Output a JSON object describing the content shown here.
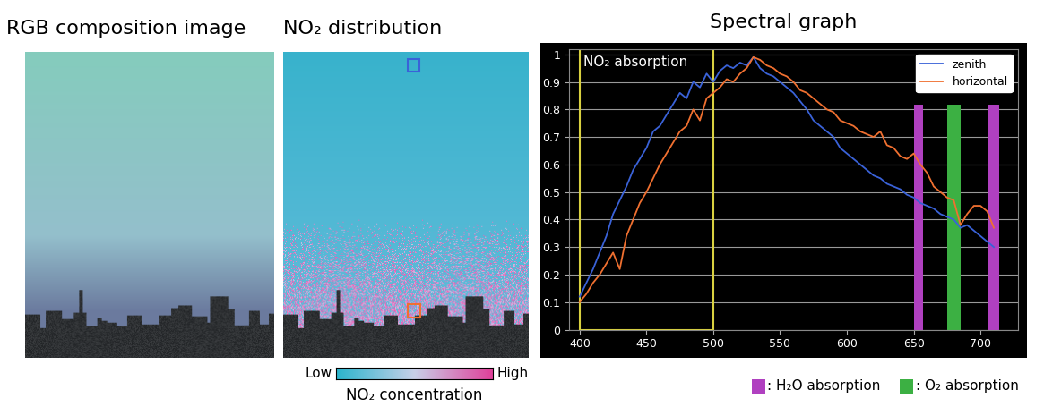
{
  "panels": [
    {
      "title": "RGB composition image"
    },
    {
      "title": "NO₂ distribution",
      "colorbar": {
        "low": "Low",
        "high": "High",
        "label": "NO₂ concentration"
      }
    }
  ],
  "chart_data": {
    "type": "line",
    "title": "Spectral graph",
    "x": [
      400,
      405,
      410,
      415,
      420,
      425,
      430,
      435,
      440,
      445,
      450,
      455,
      460,
      465,
      470,
      475,
      480,
      485,
      490,
      495,
      500,
      505,
      510,
      515,
      520,
      525,
      530,
      535,
      540,
      545,
      550,
      555,
      560,
      565,
      570,
      575,
      580,
      585,
      590,
      595,
      600,
      605,
      610,
      615,
      620,
      625,
      630,
      635,
      640,
      645,
      650,
      655,
      660,
      665,
      670,
      675,
      680,
      685,
      690,
      695,
      700,
      705,
      710
    ],
    "series": [
      {
        "name": "zenith",
        "color": "#3a62d8",
        "values": [
          0.12,
          0.17,
          0.22,
          0.28,
          0.34,
          0.42,
          0.47,
          0.52,
          0.58,
          0.62,
          0.66,
          0.72,
          0.74,
          0.78,
          0.82,
          0.86,
          0.84,
          0.9,
          0.88,
          0.93,
          0.9,
          0.94,
          0.96,
          0.95,
          0.97,
          0.96,
          0.99,
          0.95,
          0.93,
          0.92,
          0.9,
          0.88,
          0.86,
          0.83,
          0.8,
          0.76,
          0.74,
          0.72,
          0.7,
          0.66,
          0.64,
          0.62,
          0.6,
          0.58,
          0.56,
          0.55,
          0.53,
          0.52,
          0.51,
          0.49,
          0.48,
          0.46,
          0.45,
          0.44,
          0.42,
          0.41,
          0.4,
          0.37,
          0.38,
          0.36,
          0.34,
          0.32,
          0.3
        ]
      },
      {
        "name": "horizontal",
        "color": "#f07030",
        "values": [
          0.1,
          0.13,
          0.17,
          0.2,
          0.24,
          0.28,
          0.22,
          0.34,
          0.4,
          0.46,
          0.5,
          0.55,
          0.6,
          0.64,
          0.68,
          0.72,
          0.74,
          0.8,
          0.76,
          0.84,
          0.86,
          0.88,
          0.91,
          0.9,
          0.93,
          0.95,
          0.99,
          0.98,
          0.96,
          0.95,
          0.93,
          0.92,
          0.9,
          0.87,
          0.86,
          0.84,
          0.82,
          0.8,
          0.79,
          0.76,
          0.75,
          0.74,
          0.72,
          0.71,
          0.7,
          0.72,
          0.67,
          0.66,
          0.63,
          0.62,
          0.64,
          0.6,
          0.57,
          0.52,
          0.5,
          0.48,
          0.47,
          0.38,
          0.42,
          0.45,
          0.45,
          0.43,
          0.37
        ]
      }
    ],
    "xlim": [
      392,
      728
    ],
    "ylim": [
      0,
      1.02
    ],
    "xticks": [
      400,
      450,
      500,
      550,
      600,
      650,
      700
    ],
    "yticks": [
      0,
      0.1,
      0.2,
      0.3,
      0.4,
      0.5,
      0.6,
      0.7,
      0.8,
      0.9,
      1
    ],
    "grid": true,
    "legend": "upper right",
    "annotations": [
      {
        "text": "NO₂ absorption",
        "x_range": [
          400,
          500
        ],
        "color": "#d8d040"
      }
    ],
    "bands": [
      {
        "label": ": H₂O absorption",
        "color": "#b040c0",
        "ranges": [
          [
            650,
            657
          ],
          [
            706,
            714
          ]
        ]
      },
      {
        "label": ": O₂ absorption",
        "color": "#3cb043",
        "ranges": [
          [
            675,
            685
          ]
        ]
      }
    ]
  }
}
